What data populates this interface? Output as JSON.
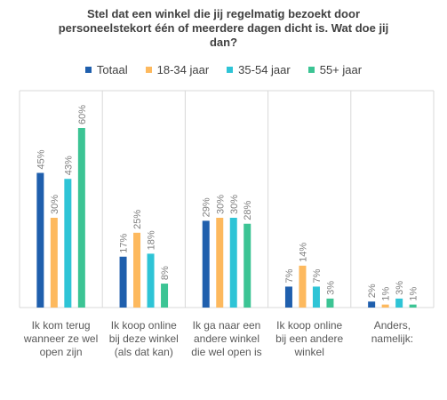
{
  "chart_data": {
    "type": "bar",
    "title_lines": [
      "Stel dat een winkel die jij regelmatig bezoekt door",
      "personeelstekort één of meerdere dagen dicht is. Wat doe jij",
      "dan?"
    ],
    "categories": [
      [
        "Ik kom terug",
        "wanneer ze wel",
        "open zijn"
      ],
      [
        "Ik koop online",
        "bij deze winkel",
        "(als dat kan)"
      ],
      [
        "Ik ga naar een",
        "andere winkel",
        "die wel open is"
      ],
      [
        "Ik koop online",
        "bij een andere",
        "winkel"
      ],
      [
        "Anders,",
        "namelijk:"
      ]
    ],
    "series": [
      {
        "name": "Totaal",
        "color": "#1F5FAD",
        "values": [
          45,
          17,
          29,
          7,
          2
        ],
        "labels": [
          "45%",
          "17%",
          "29%",
          "7%",
          "2%"
        ]
      },
      {
        "name": "18-34 jaar",
        "color": "#FDB95E",
        "values": [
          30,
          25,
          30,
          14,
          1
        ],
        "labels": [
          "30%",
          "25%",
          "30%",
          "14%",
          "1%"
        ]
      },
      {
        "name": "35-54 jaar",
        "color": "#2EC4D6",
        "values": [
          43,
          18,
          30,
          7,
          3
        ],
        "labels": [
          "43%",
          "18%",
          "30%",
          "7%",
          "3%"
        ]
      },
      {
        "name": "55+ jaar",
        "color": "#3CC494",
        "values": [
          60,
          8,
          28,
          3,
          1
        ],
        "labels": [
          "60%",
          "8%",
          "28%",
          "3%",
          "1%"
        ]
      }
    ],
    "ylim": [
      0,
      60
    ],
    "grid": false,
    "legend_position": "top"
  }
}
